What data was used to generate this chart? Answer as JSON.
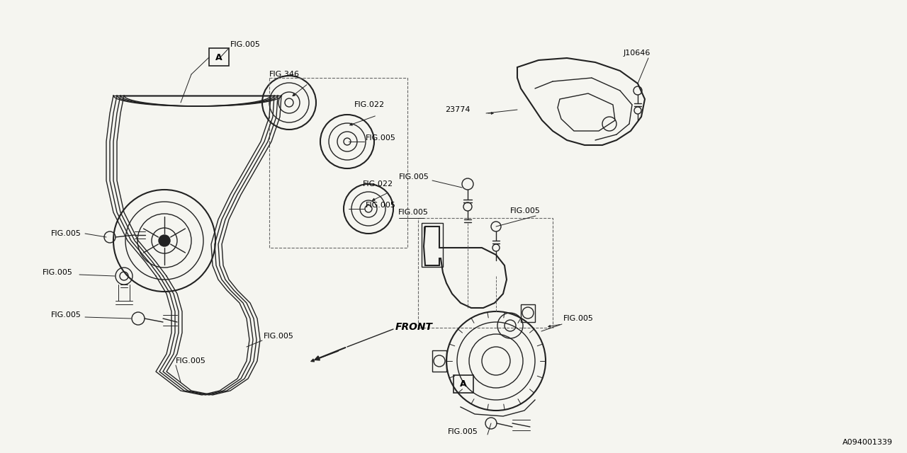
{
  "bg_color": "#f5f5f0",
  "line_color": "#222222",
  "text_color": "#000000",
  "diagram_id": "A094001339",
  "figsize": [
    12.8,
    6.4
  ],
  "dpi": 100,
  "xlim": [
    0,
    1280
  ],
  "ylim": [
    0,
    640
  ]
}
